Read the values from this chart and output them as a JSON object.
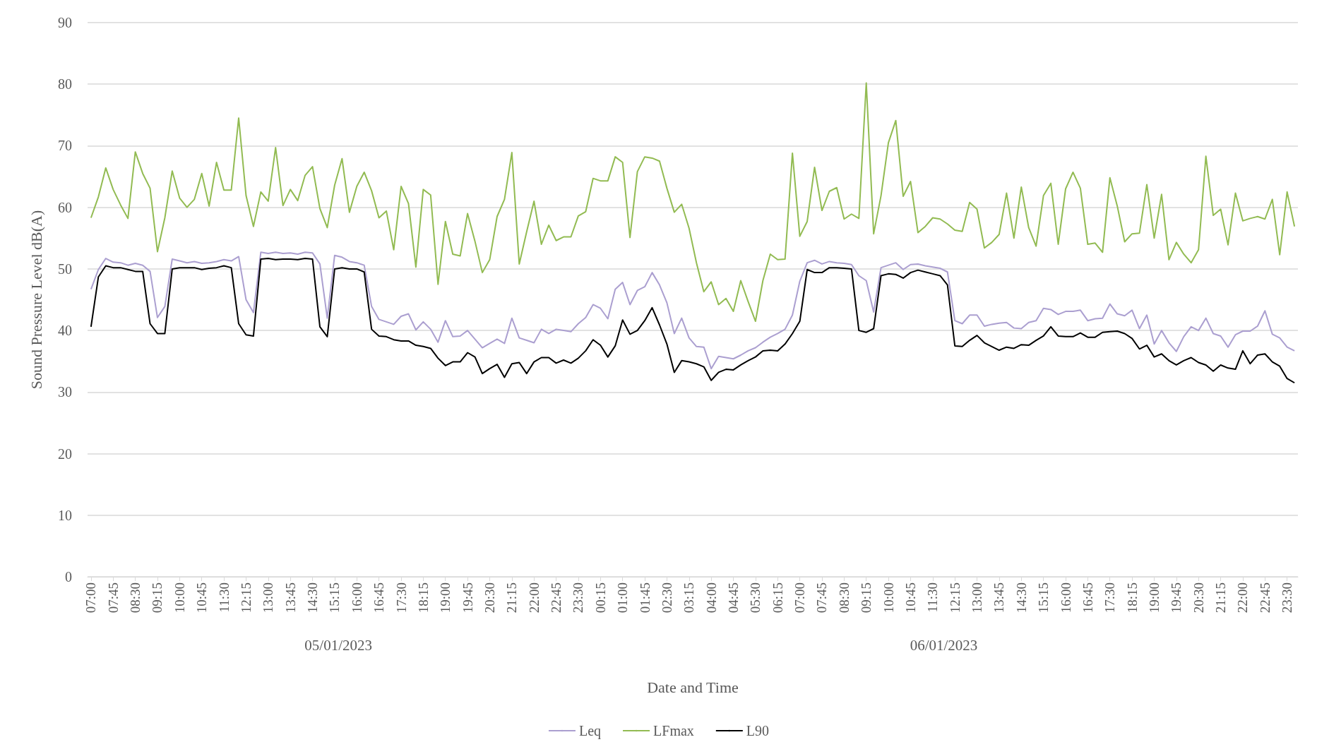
{
  "chart_data": {
    "type": "line",
    "xlabel": "Date and Time",
    "ylabel": "Sound Pressure Level dB(A)",
    "x": [
      "2023-01-05T07:00",
      "2023-01-05T07:15",
      "2023-01-05T07:30",
      "2023-01-05T07:45",
      "2023-01-05T08:00",
      "2023-01-05T08:15",
      "2023-01-05T08:30",
      "2023-01-05T08:45",
      "2023-01-05T09:00",
      "2023-01-05T09:15",
      "2023-01-05T09:30",
      "2023-01-05T09:45",
      "2023-01-05T10:00",
      "2023-01-05T10:15",
      "2023-01-05T10:30",
      "2023-01-05T10:45",
      "2023-01-05T11:00",
      "2023-01-05T11:15",
      "2023-01-05T11:30",
      "2023-01-05T11:45",
      "2023-01-05T12:00",
      "2023-01-05T12:15",
      "2023-01-05T12:30",
      "2023-01-05T12:45",
      "2023-01-05T13:00",
      "2023-01-05T13:15",
      "2023-01-05T13:30",
      "2023-01-05T13:45",
      "2023-01-05T14:00",
      "2023-01-05T14:15",
      "2023-01-05T14:30",
      "2023-01-05T14:45",
      "2023-01-05T15:00",
      "2023-01-05T15:15",
      "2023-01-05T15:30",
      "2023-01-05T15:45",
      "2023-01-05T16:00",
      "2023-01-05T16:15",
      "2023-01-05T16:30",
      "2023-01-05T16:45",
      "2023-01-05T17:00",
      "2023-01-05T17:15",
      "2023-01-05T17:30",
      "2023-01-05T17:45",
      "2023-01-05T18:00",
      "2023-01-05T18:15",
      "2023-01-05T18:30",
      "2023-01-05T18:45",
      "2023-01-05T19:00",
      "2023-01-05T19:15",
      "2023-01-05T19:30",
      "2023-01-05T19:45",
      "2023-01-05T20:00",
      "2023-01-05T20:15",
      "2023-01-05T20:30",
      "2023-01-05T20:45",
      "2023-01-05T21:00",
      "2023-01-05T21:15",
      "2023-01-05T21:30",
      "2023-01-05T21:45",
      "2023-01-05T22:00",
      "2023-01-05T22:15",
      "2023-01-05T22:30",
      "2023-01-05T22:45",
      "2023-01-05T23:00",
      "2023-01-05T23:15",
      "2023-01-05T23:30",
      "2023-01-05T23:45",
      "2023-01-06T00:00",
      "2023-01-06T00:15",
      "2023-01-06T00:30",
      "2023-01-06T00:45",
      "2023-01-06T01:00",
      "2023-01-06T01:15",
      "2023-01-06T01:30",
      "2023-01-06T01:45",
      "2023-01-06T02:00",
      "2023-01-06T02:15",
      "2023-01-06T02:30",
      "2023-01-06T02:45",
      "2023-01-06T03:00",
      "2023-01-06T03:15",
      "2023-01-06T03:30",
      "2023-01-06T03:45",
      "2023-01-06T04:00",
      "2023-01-06T04:15",
      "2023-01-06T04:30",
      "2023-01-06T04:45",
      "2023-01-06T05:00",
      "2023-01-06T05:15",
      "2023-01-06T05:30",
      "2023-01-06T05:45",
      "2023-01-06T06:00",
      "2023-01-06T06:15",
      "2023-01-06T06:30",
      "2023-01-06T06:45",
      "2023-01-06T07:00",
      "2023-01-06T07:15",
      "2023-01-06T07:30",
      "2023-01-06T07:45",
      "2023-01-06T08:00",
      "2023-01-06T08:15",
      "2023-01-06T08:30",
      "2023-01-06T08:45",
      "2023-01-06T09:00",
      "2023-01-06T09:15",
      "2023-01-06T09:30",
      "2023-01-06T09:45",
      "2023-01-06T10:00",
      "2023-01-06T10:15",
      "2023-01-06T10:30",
      "2023-01-06T10:45",
      "2023-01-06T11:00",
      "2023-01-06T11:15",
      "2023-01-06T11:30",
      "2023-01-06T11:45",
      "2023-01-06T12:00",
      "2023-01-06T12:15",
      "2023-01-06T12:30",
      "2023-01-06T12:45",
      "2023-01-06T13:00",
      "2023-01-06T13:15",
      "2023-01-06T13:30",
      "2023-01-06T13:45",
      "2023-01-06T14:00",
      "2023-01-06T14:15",
      "2023-01-06T14:30",
      "2023-01-06T14:45",
      "2023-01-06T15:00",
      "2023-01-06T15:15",
      "2023-01-06T15:30",
      "2023-01-06T15:45",
      "2023-01-06T16:00",
      "2023-01-06T16:15",
      "2023-01-06T16:30",
      "2023-01-06T16:45",
      "2023-01-06T17:00",
      "2023-01-06T17:15",
      "2023-01-06T17:30",
      "2023-01-06T17:45",
      "2023-01-06T18:00",
      "2023-01-06T18:15",
      "2023-01-06T18:30",
      "2023-01-06T18:45",
      "2023-01-06T19:00",
      "2023-01-06T19:15",
      "2023-01-06T19:30",
      "2023-01-06T19:45",
      "2023-01-06T20:00",
      "2023-01-06T20:15",
      "2023-01-06T20:30",
      "2023-01-06T20:45",
      "2023-01-06T21:00",
      "2023-01-06T21:15",
      "2023-01-06T21:30",
      "2023-01-06T21:45",
      "2023-01-06T22:00",
      "2023-01-06T22:15",
      "2023-01-06T22:30",
      "2023-01-06T22:45",
      "2023-01-06T23:00",
      "2023-01-06T23:15",
      "2023-01-06T23:30",
      "2023-01-06T23:45"
    ],
    "series": [
      {
        "name": "Leq",
        "color": "#ab9fd0",
        "values": [
          46.7,
          49.9,
          51.7,
          51.1,
          51,
          50.6,
          50.9,
          50.6,
          49.6,
          42.1,
          43.9,
          51.6,
          51.3,
          51,
          51.2,
          50.9,
          51,
          51.2,
          51.5,
          51.3,
          52,
          45,
          42.9,
          52.7,
          52.5,
          52.7,
          52.5,
          52.6,
          52.4,
          52.7,
          52.6,
          50.8,
          42,
          52.2,
          51.9,
          51.2,
          51,
          50.6,
          43.9,
          41.8,
          41.4,
          41,
          42.3,
          42.7,
          40.1,
          41.4,
          40.2,
          38.1,
          41.6,
          39,
          39.1,
          40,
          38.6,
          37.2,
          37.9,
          38.6,
          37.9,
          42,
          38.8,
          38.4,
          38,
          40.2,
          39.5,
          40.2,
          40,
          39.8,
          41.1,
          42.1,
          44.2,
          43.6,
          41.9,
          46.7,
          47.8,
          44.2,
          46.5,
          47.1,
          49.4,
          47.4,
          44.5,
          39.5,
          42,
          38.8,
          37.4,
          37.3,
          33.8,
          35.8,
          35.6,
          35.4,
          36,
          36.7,
          37.2,
          38.1,
          38.9,
          39.5,
          40.2,
          42.5,
          48,
          51,
          51.4,
          50.8,
          51.2,
          51,
          50.9,
          50.7,
          48.9,
          48.1,
          43,
          50.2,
          50.6,
          51,
          49.9,
          50.7,
          50.8,
          50.5,
          50.3,
          50.1,
          49.5,
          41.6,
          41.1,
          42.5,
          42.5,
          40.7,
          41,
          41.2,
          41.3,
          40.4,
          40.3,
          41.3,
          41.6,
          43.6,
          43.4,
          42.6,
          43.1,
          43.1,
          43.3,
          41.6,
          41.9,
          42,
          44.3,
          42.7,
          42.4,
          43.3,
          40.3,
          42.5,
          37.8,
          40,
          38,
          36.6,
          39,
          40.6,
          40,
          42,
          39.5,
          39.1,
          37.3,
          39.3,
          39.9,
          39.9,
          40.7,
          43.2,
          39.4,
          38.8,
          37.3,
          36.7
        ]
      },
      {
        "name": "LFmax",
        "color": "#92bb52",
        "values": [
          58.3,
          61.7,
          66.4,
          62.9,
          60.4,
          58.2,
          69,
          65.5,
          63.1,
          52.8,
          58.3,
          65.9,
          61.5,
          60,
          61.3,
          65.5,
          60.2,
          67.3,
          62.8,
          62.8,
          74.5,
          61.9,
          56.9,
          62.5,
          61,
          69.7,
          60.3,
          62.9,
          61.1,
          65.2,
          66.6,
          59.8,
          56.7,
          63.6,
          67.9,
          59.2,
          63.4,
          65.7,
          62.7,
          58.3,
          59.4,
          53.1,
          63.4,
          60.6,
          50.3,
          62.9,
          62,
          47.5,
          57.7,
          52.4,
          52.1,
          59,
          54.5,
          49.4,
          51.5,
          58.5,
          61.3,
          68.9,
          50.8,
          56,
          61,
          54,
          57.1,
          54.6,
          55.2,
          55.2,
          58.6,
          59.3,
          64.7,
          64.3,
          64.3,
          68.2,
          67.3,
          55.1,
          65.8,
          68.2,
          68,
          67.5,
          63.1,
          59.2,
          60.5,
          56.6,
          51,
          46.3,
          47.9,
          44.2,
          45.2,
          43.1,
          48.1,
          44.7,
          41.5,
          48.1,
          52.4,
          51.5,
          51.6,
          68.8,
          55.3,
          57.7,
          66.5,
          59.5,
          62.6,
          63.2,
          58.1,
          58.9,
          58.2,
          80.2,
          55.7,
          61.9,
          70.5,
          74.1,
          61.8,
          64.2,
          55.9,
          56.9,
          58.3,
          58.1,
          57.3,
          56.3,
          56.1,
          60.8,
          59.7,
          53.4,
          54.3,
          55.6,
          62.3,
          55,
          63.3,
          56.7,
          53.7,
          61.9,
          63.9,
          54,
          63,
          65.7,
          63.1,
          54,
          54.2,
          52.7,
          64.8,
          60.2,
          54.4,
          55.7,
          55.8,
          63.7,
          55,
          62.1,
          51.5,
          54.3,
          52.4,
          51,
          53.1,
          68.3,
          58.7,
          59.7,
          53.9,
          62.3,
          57.8,
          58.2,
          58.5,
          58.1,
          61.3,
          52.3,
          62.5,
          56.9
        ]
      },
      {
        "name": "L90",
        "color": "#000000",
        "values": [
          40.6,
          48.7,
          50.5,
          50.2,
          50.2,
          49.9,
          49.6,
          49.6,
          41.1,
          39.5,
          39.5,
          50,
          50.2,
          50.2,
          50.2,
          49.9,
          50.1,
          50.2,
          50.5,
          50.2,
          41.1,
          39.3,
          39.1,
          51.6,
          51.7,
          51.5,
          51.6,
          51.6,
          51.5,
          51.7,
          51.6,
          40.6,
          39,
          50,
          50.2,
          50,
          50,
          49.5,
          40.2,
          39.1,
          39,
          38.5,
          38.3,
          38.3,
          37.6,
          37.4,
          37.1,
          35.5,
          34.3,
          34.9,
          34.9,
          36.4,
          35.7,
          33,
          33.8,
          34.5,
          32.4,
          34.6,
          34.8,
          33,
          34.9,
          35.6,
          35.6,
          34.7,
          35.2,
          34.7,
          35.5,
          36.7,
          38.5,
          37.6,
          35.7,
          37.5,
          41.7,
          39.4,
          40,
          41.6,
          43.7,
          40.9,
          37.8,
          33.2,
          35.1,
          34.9,
          34.6,
          34.1,
          31.9,
          33.2,
          33.7,
          33.6,
          34.4,
          35.1,
          35.7,
          36.7,
          36.8,
          36.7,
          37.8,
          39.5,
          41.5,
          49.9,
          49.4,
          49.4,
          50.2,
          50.2,
          50.1,
          50,
          40,
          39.7,
          40.3,
          48.9,
          49.2,
          49.1,
          48.5,
          49.4,
          49.8,
          49.5,
          49.2,
          48.9,
          47.4,
          37.5,
          37.4,
          38.4,
          39.2,
          38,
          37.4,
          36.8,
          37.3,
          37.1,
          37.7,
          37.6,
          38.4,
          39.1,
          40.6,
          39.1,
          39,
          39,
          39.6,
          38.9,
          38.9,
          39.7,
          39.8,
          39.9,
          39.5,
          38.7,
          37,
          37.6,
          35.7,
          36.2,
          35.1,
          34.4,
          35.1,
          35.6,
          34.8,
          34.4,
          33.4,
          34.4,
          33.9,
          33.7,
          36.7,
          34.6,
          36,
          36.2,
          34.9,
          34.2,
          32.2,
          31.5
        ]
      }
    ],
    "xlim": [
      "2023-01-05T06:53",
      "2023-01-06T23:52"
    ],
    "xticks": [
      {
        "value": "2023-01-05T07:00",
        "label": "07:00"
      },
      {
        "value": "2023-01-05T07:45",
        "label": "07:45"
      },
      {
        "value": "2023-01-05T08:30",
        "label": "08:30"
      },
      {
        "value": "2023-01-05T09:15",
        "label": "09:15"
      },
      {
        "value": "2023-01-05T10:00",
        "label": "10:00"
      },
      {
        "value": "2023-01-05T10:45",
        "label": "10:45"
      },
      {
        "value": "2023-01-05T11:30",
        "label": "11:30"
      },
      {
        "value": "2023-01-05T12:15",
        "label": "12:15"
      },
      {
        "value": "2023-01-05T13:00",
        "label": "13:00"
      },
      {
        "value": "2023-01-05T13:45",
        "label": "13:45"
      },
      {
        "value": "2023-01-05T14:30",
        "label": "14:30"
      },
      {
        "value": "2023-01-05T15:15",
        "label": "15:15"
      },
      {
        "value": "2023-01-05T16:00",
        "label": "16:00"
      },
      {
        "value": "2023-01-05T16:45",
        "label": "16:45"
      },
      {
        "value": "2023-01-05T17:30",
        "label": "17:30"
      },
      {
        "value": "2023-01-05T18:15",
        "label": "18:15"
      },
      {
        "value": "2023-01-05T19:00",
        "label": "19:00"
      },
      {
        "value": "2023-01-05T19:45",
        "label": "19:45"
      },
      {
        "value": "2023-01-05T20:30",
        "label": "20:30"
      },
      {
        "value": "2023-01-05T21:15",
        "label": "21:15"
      },
      {
        "value": "2023-01-05T22:00",
        "label": "22:00"
      },
      {
        "value": "2023-01-05T22:45",
        "label": "22:45"
      },
      {
        "value": "2023-01-05T23:30",
        "label": "23:30"
      },
      {
        "value": "2023-01-06T00:15",
        "label": "00:15"
      },
      {
        "value": "2023-01-06T01:00",
        "label": "01:00"
      },
      {
        "value": "2023-01-06T01:45",
        "label": "01:45"
      },
      {
        "value": "2023-01-06T02:30",
        "label": "02:30"
      },
      {
        "value": "2023-01-06T03:15",
        "label": "03:15"
      },
      {
        "value": "2023-01-06T04:00",
        "label": "04:00"
      },
      {
        "value": "2023-01-06T04:45",
        "label": "04:45"
      },
      {
        "value": "2023-01-06T05:30",
        "label": "05:30"
      },
      {
        "value": "2023-01-06T06:15",
        "label": "06:15"
      },
      {
        "value": "2023-01-06T07:00",
        "label": "07:00"
      },
      {
        "value": "2023-01-06T07:45",
        "label": "07:45"
      },
      {
        "value": "2023-01-06T08:30",
        "label": "08:30"
      },
      {
        "value": "2023-01-06T09:15",
        "label": "09:15"
      },
      {
        "value": "2023-01-06T10:00",
        "label": "10:00"
      },
      {
        "value": "2023-01-06T10:45",
        "label": "10:45"
      },
      {
        "value": "2023-01-06T11:30",
        "label": "11:30"
      },
      {
        "value": "2023-01-06T12:15",
        "label": "12:15"
      },
      {
        "value": "2023-01-06T13:00",
        "label": "13:00"
      },
      {
        "value": "2023-01-06T13:45",
        "label": "13:45"
      },
      {
        "value": "2023-01-06T14:30",
        "label": "14:30"
      },
      {
        "value": "2023-01-06T15:15",
        "label": "15:15"
      },
      {
        "value": "2023-01-06T16:00",
        "label": "16:00"
      },
      {
        "value": "2023-01-06T16:45",
        "label": "16:45"
      },
      {
        "value": "2023-01-06T17:30",
        "label": "17:30"
      },
      {
        "value": "2023-01-06T18:15",
        "label": "18:15"
      },
      {
        "value": "2023-01-06T19:00",
        "label": "19:00"
      },
      {
        "value": "2023-01-06T19:45",
        "label": "19:45"
      },
      {
        "value": "2023-01-06T20:30",
        "label": "20:30"
      },
      {
        "value": "2023-01-06T21:15",
        "label": "21:15"
      },
      {
        "value": "2023-01-06T22:00",
        "label": "22:00"
      },
      {
        "value": "2023-01-06T22:45",
        "label": "22:45"
      },
      {
        "value": "2023-01-06T23:30",
        "label": "23:30"
      }
    ],
    "ylim": [
      0,
      90
    ],
    "yticks": [
      0,
      10,
      20,
      30,
      40,
      50,
      60,
      70,
      80,
      90
    ],
    "annotations": [
      "05/01/2023",
      "06/01/2023"
    ],
    "grid": "y",
    "legend": "bottom",
    "marker": "none",
    "line_style": "solid"
  }
}
